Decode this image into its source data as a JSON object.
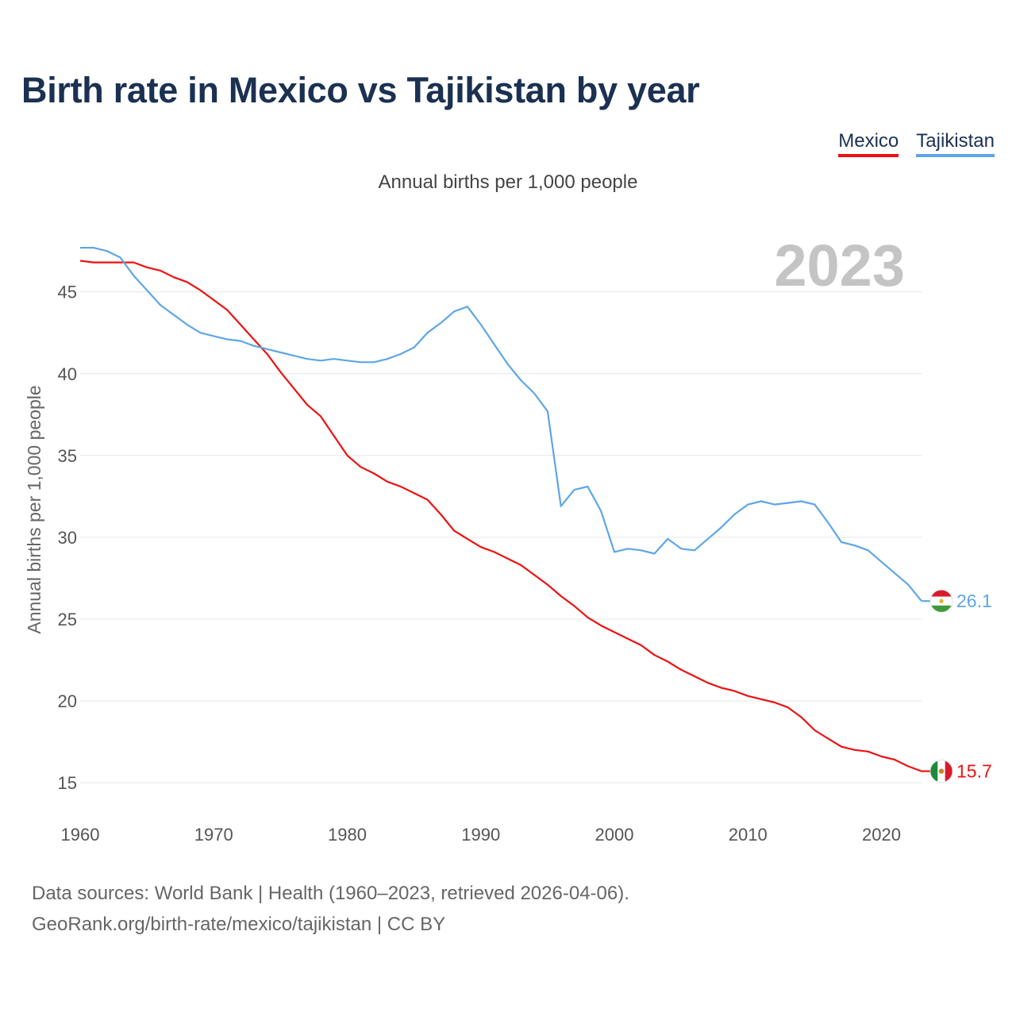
{
  "title": "Birth rate in Mexico vs Tajikistan by year",
  "subtitle": "Annual births per 1,000 people",
  "legend": [
    {
      "name": "Mexico",
      "color": "#ee1111"
    },
    {
      "name": "Tajikistan",
      "color": "#5ea6e6"
    }
  ],
  "year_watermark": "2023",
  "source": {
    "line1": "Data sources: World Bank | Health (1960–2023, retrieved 2026-04-06).",
    "line2": "GeoRank.org/birth-rate/mexico/tajikistan | CC BY"
  },
  "chart_data": {
    "type": "line",
    "title": "Birth rate in Mexico vs Tajikistan by year",
    "xlabel": "",
    "ylabel": "Annual births per 1,000 people",
    "xlim": [
      1960,
      2023
    ],
    "ylim": [
      15,
      47.8
    ],
    "xticks": [
      1960,
      1970,
      1980,
      1990,
      2000,
      2010,
      2020
    ],
    "yticks": [
      15,
      20,
      25,
      30,
      35,
      40,
      45
    ],
    "grid": true,
    "legend_position": "top-right",
    "x": [
      1960,
      1961,
      1962,
      1963,
      1964,
      1965,
      1966,
      1967,
      1968,
      1969,
      1970,
      1971,
      1972,
      1973,
      1974,
      1975,
      1976,
      1977,
      1978,
      1979,
      1980,
      1981,
      1982,
      1983,
      1984,
      1985,
      1986,
      1987,
      1988,
      1989,
      1990,
      1991,
      1992,
      1993,
      1994,
      1995,
      1996,
      1997,
      1998,
      1999,
      2000,
      2001,
      2002,
      2003,
      2004,
      2005,
      2006,
      2007,
      2008,
      2009,
      2010,
      2011,
      2012,
      2013,
      2014,
      2015,
      2016,
      2017,
      2018,
      2019,
      2020,
      2021,
      2022,
      2023
    ],
    "series": [
      {
        "name": "Mexico",
        "color": "#ee1111",
        "end_label": "15.7",
        "values": [
          46.9,
          46.8,
          46.8,
          46.8,
          46.8,
          46.5,
          46.3,
          45.9,
          45.6,
          45.1,
          44.5,
          43.9,
          43.0,
          42.1,
          41.2,
          40.1,
          39.1,
          38.1,
          37.4,
          36.2,
          35.0,
          34.3,
          33.9,
          33.4,
          33.1,
          32.7,
          32.3,
          31.4,
          30.4,
          29.9,
          29.4,
          29.1,
          28.7,
          28.3,
          27.7,
          27.1,
          26.4,
          25.8,
          25.1,
          24.6,
          24.2,
          23.8,
          23.4,
          22.8,
          22.4,
          21.9,
          21.5,
          21.1,
          20.8,
          20.6,
          20.3,
          20.1,
          19.9,
          19.6,
          19.0,
          18.2,
          17.7,
          17.2,
          17.0,
          16.9,
          16.6,
          16.4,
          16.0,
          15.7
        ]
      },
      {
        "name": "Tajikistan",
        "color": "#5ea6e6",
        "end_label": "26.1",
        "values": [
          47.7,
          47.7,
          47.5,
          47.1,
          46.0,
          45.1,
          44.2,
          43.6,
          43.0,
          42.5,
          42.3,
          42.1,
          42.0,
          41.7,
          41.5,
          41.3,
          41.1,
          40.9,
          40.8,
          40.9,
          40.8,
          40.7,
          40.7,
          40.9,
          41.2,
          41.6,
          42.5,
          43.1,
          43.8,
          44.1,
          43.0,
          41.8,
          40.6,
          39.6,
          38.8,
          37.7,
          31.9,
          32.9,
          33.1,
          31.6,
          29.1,
          29.3,
          29.2,
          29.0,
          29.9,
          29.3,
          29.2,
          29.9,
          30.6,
          31.4,
          32.0,
          32.2,
          32.0,
          32.1,
          32.2,
          32.0,
          30.9,
          29.7,
          29.5,
          29.2,
          28.5,
          27.8,
          27.1,
          26.1
        ]
      }
    ]
  }
}
